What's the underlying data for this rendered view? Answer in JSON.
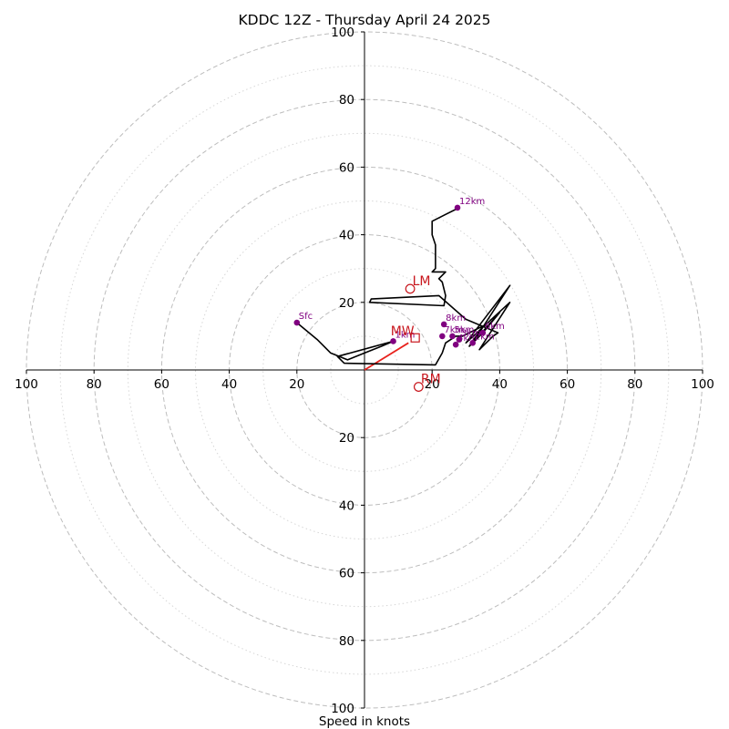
{
  "chart_data": {
    "type": "hodograph",
    "title": "KDDC 12Z - Thursday April 24 2025",
    "xlabel": "Speed in knots",
    "speed_range": [
      0,
      100
    ],
    "ring_major": [
      20,
      40,
      60,
      80,
      100
    ],
    "ring_minor": [
      10,
      30,
      50,
      70,
      90
    ],
    "tick_labels": {
      "left": [
        "100",
        "80",
        "60",
        "40",
        "20"
      ],
      "right": [
        "20",
        "40",
        "60",
        "80",
        "100"
      ],
      "top": [
        "20",
        "40",
        "60",
        "80",
        "100"
      ],
      "bottom": [
        "20",
        "40",
        "60",
        "80",
        "100"
      ]
    },
    "colors": {
      "trace": "#000000",
      "height_marker": "#800080",
      "motion": "#c8161d",
      "grid": "#bdbdbd"
    },
    "trace_uv": [
      [
        -20,
        14
      ],
      [
        -14,
        9
      ],
      [
        -10,
        5
      ],
      [
        -5,
        3
      ],
      [
        0,
        5
      ],
      [
        5,
        7
      ],
      [
        8.5,
        8.5
      ],
      [
        -8,
        4
      ],
      [
        -6,
        2
      ],
      [
        21,
        1.5
      ],
      [
        23,
        5
      ],
      [
        24,
        8
      ],
      [
        27,
        10
      ],
      [
        29,
        10
      ],
      [
        35,
        13
      ],
      [
        31,
        7
      ],
      [
        35,
        11
      ],
      [
        40,
        17
      ],
      [
        32,
        8
      ],
      [
        43,
        25
      ],
      [
        30,
        8
      ],
      [
        43,
        20
      ],
      [
        34,
        6
      ],
      [
        38,
        10
      ],
      [
        39.5,
        11
      ],
      [
        30,
        15
      ],
      [
        22,
        22
      ],
      [
        2,
        21
      ],
      [
        1.5,
        20
      ],
      [
        23.5,
        19
      ],
      [
        24,
        22
      ],
      [
        23,
        26
      ],
      [
        22,
        27
      ],
      [
        24,
        29
      ],
      [
        20,
        29
      ],
      [
        21,
        30
      ],
      [
        21,
        37
      ],
      [
        20,
        40
      ],
      [
        20,
        44
      ],
      [
        24,
        46
      ],
      [
        28,
        48
      ]
    ],
    "height_points": [
      {
        "label": "Sfc",
        "u": -20,
        "v": 14
      },
      {
        "label": "1km",
        "u": 8.5,
        "v": 8.5
      },
      {
        "label": "2km",
        "u": 32,
        "v": 8
      },
      {
        "label": "3km",
        "u": 28,
        "v": 9
      },
      {
        "label": "4km",
        "u": 27,
        "v": 7.5
      },
      {
        "label": "5km",
        "u": 26,
        "v": 10
      },
      {
        "label": "6km",
        "u": 35,
        "v": 11
      },
      {
        "label": "7km",
        "u": 23,
        "v": 10
      },
      {
        "label": "8km",
        "u": 23.5,
        "v": 13.5
      },
      {
        "label": "12km",
        "u": 27.5,
        "v": 48
      }
    ],
    "storm_motion": {
      "mean_wind": {
        "label": "MW",
        "u": 15,
        "v": 9.5
      },
      "left_mover": {
        "label": "LM",
        "u": 13.5,
        "v": 24
      },
      "right_mover": {
        "label": "RM",
        "u": 16,
        "v": -5
      }
    },
    "shear_vector": [
      [
        0,
        0
      ],
      [
        13,
        8
      ]
    ]
  }
}
